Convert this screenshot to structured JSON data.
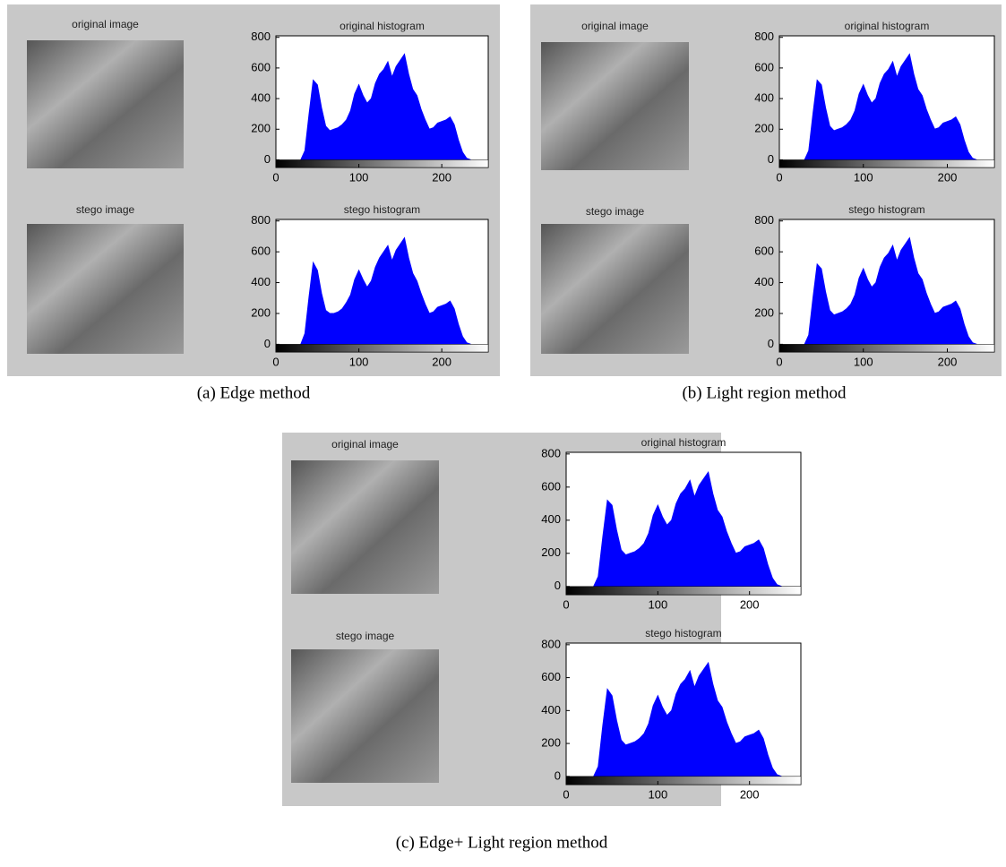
{
  "panels": [
    {
      "caption": "(a) Edge method",
      "images": [
        "original image",
        "stego image"
      ]
    },
    {
      "caption": "(b) Light region method",
      "images": [
        "original image",
        "stego image"
      ]
    },
    {
      "caption": "(c) Edge+ Light region method",
      "images": [
        "original image",
        "stego image"
      ]
    }
  ],
  "chart_data": [
    {
      "type": "area",
      "title": "original histogram",
      "color": "#0000ff",
      "xlim": [
        0,
        256
      ],
      "ylim": [
        -50,
        810
      ],
      "xticks": [
        0,
        100,
        200
      ],
      "yticks": [
        0,
        200,
        400,
        600,
        800
      ],
      "x": [
        30,
        35,
        40,
        45,
        50,
        55,
        60,
        65,
        70,
        75,
        80,
        85,
        90,
        95,
        100,
        105,
        110,
        115,
        120,
        125,
        130,
        135,
        140,
        145,
        150,
        155,
        160,
        165,
        170,
        175,
        180,
        185,
        190,
        195,
        200,
        205,
        210,
        215,
        220,
        225,
        230,
        235
      ],
      "values": [
        0,
        60,
        300,
        520,
        490,
        340,
        220,
        190,
        200,
        210,
        230,
        260,
        320,
        430,
        490,
        420,
        370,
        400,
        500,
        560,
        590,
        640,
        540,
        610,
        650,
        690,
        560,
        460,
        420,
        330,
        260,
        200,
        210,
        240,
        250,
        260,
        280,
        230,
        130,
        50,
        10,
        0
      ]
    },
    {
      "type": "area",
      "title": "stego histogram",
      "color": "#0000ff",
      "xlim": [
        0,
        256
      ],
      "ylim": [
        -50,
        810
      ],
      "xticks": [
        0,
        100,
        200
      ],
      "yticks": [
        0,
        200,
        400,
        600,
        800
      ],
      "x": [
        30,
        35,
        40,
        45,
        50,
        55,
        60,
        65,
        70,
        75,
        80,
        85,
        90,
        95,
        100,
        105,
        110,
        115,
        120,
        125,
        130,
        135,
        140,
        145,
        150,
        155,
        160,
        165,
        170,
        175,
        180,
        185,
        190,
        195,
        200,
        205,
        210,
        215,
        220,
        225,
        230,
        235
      ],
      "values": [
        0,
        70,
        310,
        530,
        480,
        330,
        220,
        200,
        200,
        210,
        230,
        270,
        320,
        420,
        480,
        420,
        370,
        410,
        500,
        560,
        600,
        640,
        540,
        610,
        650,
        690,
        560,
        460,
        410,
        330,
        260,
        200,
        210,
        240,
        250,
        260,
        280,
        230,
        130,
        50,
        10,
        0
      ]
    },
    {
      "type": "area",
      "title": "original histogram",
      "color": "#0000ff",
      "xlim": [
        0,
        256
      ],
      "ylim": [
        -50,
        810
      ],
      "xticks": [
        0,
        100,
        200
      ],
      "yticks": [
        0,
        200,
        400,
        600,
        800
      ],
      "x": [
        30,
        35,
        40,
        45,
        50,
        55,
        60,
        65,
        70,
        75,
        80,
        85,
        90,
        95,
        100,
        105,
        110,
        115,
        120,
        125,
        130,
        135,
        140,
        145,
        150,
        155,
        160,
        165,
        170,
        175,
        180,
        185,
        190,
        195,
        200,
        205,
        210,
        215,
        220,
        225,
        230,
        235
      ],
      "values": [
        0,
        60,
        300,
        520,
        490,
        340,
        220,
        190,
        200,
        210,
        230,
        260,
        320,
        430,
        490,
        420,
        370,
        400,
        500,
        560,
        590,
        640,
        540,
        610,
        650,
        690,
        560,
        460,
        420,
        330,
        260,
        200,
        210,
        240,
        250,
        260,
        280,
        230,
        130,
        50,
        10,
        0
      ]
    },
    {
      "type": "area",
      "title": "stego histogram",
      "color": "#0000ff",
      "xlim": [
        0,
        256
      ],
      "ylim": [
        -50,
        810
      ],
      "xticks": [
        0,
        100,
        200
      ],
      "yticks": [
        0,
        200,
        400,
        600,
        800
      ],
      "x": [
        30,
        35,
        40,
        45,
        50,
        55,
        60,
        65,
        70,
        75,
        80,
        85,
        90,
        95,
        100,
        105,
        110,
        115,
        120,
        125,
        130,
        135,
        140,
        145,
        150,
        155,
        160,
        165,
        170,
        175,
        180,
        185,
        190,
        195,
        200,
        205,
        210,
        215,
        220,
        225,
        230,
        235
      ],
      "values": [
        0,
        60,
        300,
        520,
        490,
        340,
        220,
        190,
        200,
        210,
        230,
        260,
        320,
        430,
        490,
        420,
        370,
        400,
        500,
        560,
        590,
        640,
        540,
        610,
        650,
        690,
        560,
        460,
        420,
        330,
        260,
        200,
        210,
        240,
        250,
        260,
        280,
        230,
        130,
        50,
        10,
        0
      ]
    },
    {
      "type": "area",
      "title": "original histogram",
      "color": "#0000ff",
      "xlim": [
        0,
        256
      ],
      "ylim": [
        -50,
        810
      ],
      "xticks": [
        0,
        100,
        200
      ],
      "yticks": [
        0,
        200,
        400,
        600,
        800
      ],
      "x": [
        30,
        35,
        40,
        45,
        50,
        55,
        60,
        65,
        70,
        75,
        80,
        85,
        90,
        95,
        100,
        105,
        110,
        115,
        120,
        125,
        130,
        135,
        140,
        145,
        150,
        155,
        160,
        165,
        170,
        175,
        180,
        185,
        190,
        195,
        200,
        205,
        210,
        215,
        220,
        225,
        230,
        235
      ],
      "values": [
        0,
        60,
        300,
        520,
        490,
        340,
        220,
        190,
        200,
        210,
        230,
        260,
        320,
        430,
        490,
        420,
        370,
        400,
        500,
        560,
        590,
        640,
        540,
        610,
        650,
        690,
        560,
        460,
        420,
        330,
        260,
        200,
        210,
        240,
        250,
        260,
        280,
        230,
        130,
        50,
        10,
        0
      ]
    },
    {
      "type": "area",
      "title": "stego histogram",
      "color": "#0000ff",
      "xlim": [
        0,
        256
      ],
      "ylim": [
        -50,
        810
      ],
      "xticks": [
        0,
        100,
        200
      ],
      "yticks": [
        0,
        200,
        400,
        600,
        800
      ],
      "x": [
        30,
        35,
        40,
        45,
        50,
        55,
        60,
        65,
        70,
        75,
        80,
        85,
        90,
        95,
        100,
        105,
        110,
        115,
        120,
        125,
        130,
        135,
        140,
        145,
        150,
        155,
        160,
        165,
        170,
        175,
        180,
        185,
        190,
        195,
        200,
        205,
        210,
        215,
        220,
        225,
        230,
        235
      ],
      "values": [
        0,
        60,
        310,
        530,
        490,
        340,
        220,
        190,
        200,
        210,
        230,
        260,
        320,
        430,
        490,
        420,
        370,
        400,
        500,
        560,
        590,
        640,
        540,
        610,
        650,
        690,
        560,
        460,
        420,
        330,
        260,
        200,
        210,
        240,
        250,
        260,
        280,
        230,
        130,
        50,
        10,
        0
      ]
    }
  ]
}
